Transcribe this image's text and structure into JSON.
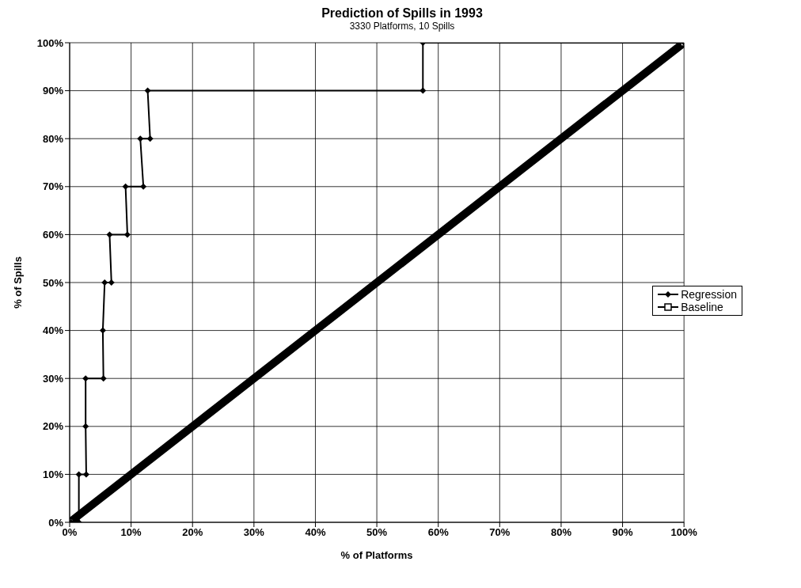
{
  "chart_data": {
    "type": "line",
    "title": "Prediction of Spills in 1993",
    "subtitle": "3330 Platforms, 10 Spills",
    "xlabel": "% of Platforms",
    "ylabel": "% of Spills",
    "xlim": [
      0,
      100
    ],
    "ylim": [
      0,
      100
    ],
    "xticks": [
      {
        "value": 0,
        "label": "0%"
      },
      {
        "value": 10,
        "label": "10%"
      },
      {
        "value": 20,
        "label": "20%"
      },
      {
        "value": 30,
        "label": "30%"
      },
      {
        "value": 40,
        "label": "40%"
      },
      {
        "value": 50,
        "label": "50%"
      },
      {
        "value": 60,
        "label": "60%"
      },
      {
        "value": 70,
        "label": "70%"
      },
      {
        "value": 80,
        "label": "80%"
      },
      {
        "value": 90,
        "label": "90%"
      },
      {
        "value": 100,
        "label": "100%"
      }
    ],
    "yticks": [
      {
        "value": 0,
        "label": "0%"
      },
      {
        "value": 10,
        "label": "10%"
      },
      {
        "value": 20,
        "label": "20%"
      },
      {
        "value": 30,
        "label": "30%"
      },
      {
        "value": 40,
        "label": "40%"
      },
      {
        "value": 50,
        "label": "50%"
      },
      {
        "value": 60,
        "label": "60%"
      },
      {
        "value": 70,
        "label": "70%"
      },
      {
        "value": 80,
        "label": "80%"
      },
      {
        "value": 90,
        "label": "90%"
      },
      {
        "value": 100,
        "label": "100%"
      }
    ],
    "grid": true,
    "legend": "right",
    "series": [
      {
        "name": "Regression",
        "color": "#000000",
        "marker": "diamond",
        "x": [
          0.2,
          1.5,
          1.5,
          2.7,
          2.6,
          2.6,
          5.5,
          5.4,
          5.7,
          6.8,
          6.5,
          9.4,
          9.1,
          12,
          11.5,
          13.1,
          12.7,
          57.5,
          57.5,
          100
        ],
        "values": [
          0,
          0,
          10,
          10,
          20,
          30,
          30,
          40,
          50,
          50,
          60,
          60,
          70,
          70,
          80,
          80,
          90,
          90,
          100,
          100
        ]
      },
      {
        "name": "Baseline",
        "color": "#000000",
        "marker": "square",
        "x": [
          0,
          100
        ],
        "values": [
          0,
          100
        ]
      }
    ]
  }
}
